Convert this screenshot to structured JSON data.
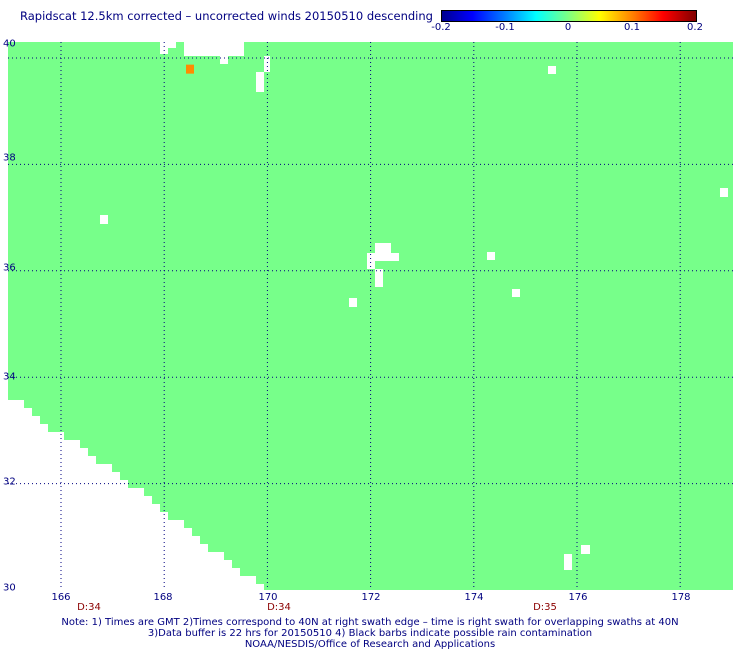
{
  "title": "Rapidscat 12.5km corrected – uncorrected winds 20150510 descending",
  "colorbar": {
    "ticks": [
      {
        "label": "-0.2",
        "value": -0.2
      },
      {
        "label": "-0.1",
        "value": -0.1
      },
      {
        "label": "0",
        "value": 0
      },
      {
        "label": "0.1",
        "value": 0.1
      },
      {
        "label": "0.2",
        "value": 0.2
      }
    ]
  },
  "map": {
    "lat_range": [
      30,
      40
    ],
    "lon_range": [
      166,
      179
    ],
    "lat_ticks": [
      "40",
      "38",
      "36",
      "34",
      "32",
      "30"
    ],
    "lon_ticks": [
      "166",
      "168",
      "170",
      "172",
      "174",
      "176",
      "178"
    ],
    "field_color": "#77ff8a",
    "grid_color": "#000080",
    "swath_times": [
      {
        "label": "D:34",
        "lon": 166.5
      },
      {
        "label": "D:34",
        "lon": 170.2
      },
      {
        "label": "D:35",
        "lon": 175.5
      }
    ],
    "anomalies": [
      {
        "lon": 168.5,
        "lat": 39.8,
        "value": 0.1
      }
    ]
  },
  "notes": {
    "line1": "Note: 1) Times are GMT 2)Times correspond to 40N at right swath edge – time is right swath for overlapping swaths at 40N",
    "line2": "3)Data buffer is 22 hrs for 20150510 4) Black barbs indicate possible rain contamination",
    "line3": "NOAA/NESDIS/Office of Research and Applications"
  }
}
